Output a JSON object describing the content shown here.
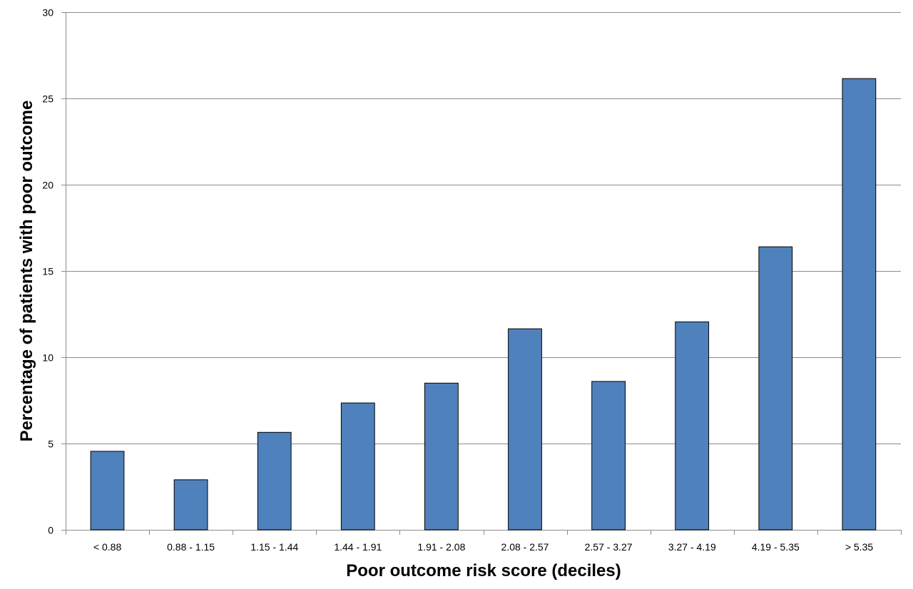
{
  "chart_data": {
    "type": "bar",
    "xlabel": "Poor outcome risk score (deciles)",
    "ylabel": "Percentage of patients with poor outcome",
    "ylim": [
      0,
      30
    ],
    "yticks": [
      0,
      5,
      10,
      15,
      20,
      25,
      30
    ],
    "grid": true,
    "legend": "none",
    "bar_color": "#4f81bd",
    "categories": [
      "< 0.88",
      "0.88 - 1.15",
      "1.15 - 1.44",
      "1.44 - 1.91",
      "1.91 - 2.08",
      "2.08 - 2.57",
      "2.57 - 3.27",
      "3.27 - 4.19",
      "4.19 - 5.35",
      "> 5.35"
    ],
    "values": [
      4.55,
      2.9,
      5.65,
      7.35,
      8.5,
      11.65,
      8.6,
      12.05,
      16.4,
      26.15
    ]
  }
}
